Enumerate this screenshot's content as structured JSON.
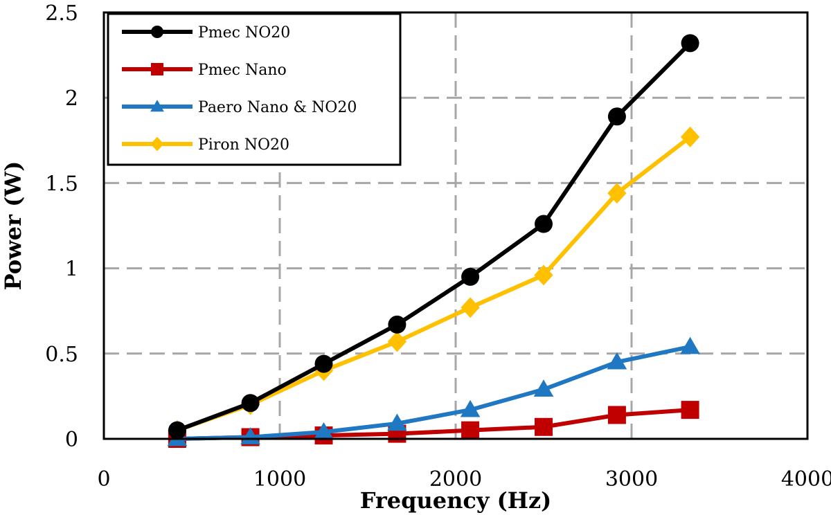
{
  "chart_data": {
    "type": "line",
    "title": "",
    "xlabel": "Frequency (Hz)",
    "ylabel": "Power (W)",
    "xlim": [
      0,
      4000
    ],
    "ylim": [
      0,
      2.5
    ],
    "x_ticks": [
      0,
      1000,
      2000,
      3000,
      4000
    ],
    "y_ticks": [
      0,
      0.5,
      1,
      1.5,
      2,
      2.5
    ],
    "x_tick_labels": [
      "0",
      "1000",
      "2000",
      "3000",
      "4000"
    ],
    "y_tick_labels": [
      "0",
      "0.5",
      "1",
      "1.5",
      "2",
      "2.5"
    ],
    "grid": true,
    "grid_style": "dashed",
    "legend_position": "top-left",
    "x": [
      417,
      833,
      1250,
      1667,
      2083,
      2500,
      2917,
      3333
    ],
    "series": [
      {
        "name": "Pmec NO20",
        "color": "#000000",
        "marker": "circle",
        "values": [
          0.05,
          0.21,
          0.44,
          0.67,
          0.95,
          1.26,
          1.89,
          2.32
        ]
      },
      {
        "name": "Pmec Nano",
        "color": "#c00000",
        "marker": "square",
        "values": [
          0.0,
          0.01,
          0.02,
          0.03,
          0.05,
          0.07,
          0.14,
          0.17
        ]
      },
      {
        "name": "Paero Nano & NO20",
        "color": "#1f78c1",
        "marker": "triangle",
        "values": [
          0.0,
          0.01,
          0.04,
          0.09,
          0.17,
          0.29,
          0.45,
          0.54
        ]
      },
      {
        "name": "Piron NO20",
        "color": "#ffc000",
        "marker": "diamond",
        "values": [
          0.05,
          0.2,
          0.4,
          0.57,
          0.77,
          0.96,
          1.44,
          1.77
        ]
      }
    ]
  }
}
